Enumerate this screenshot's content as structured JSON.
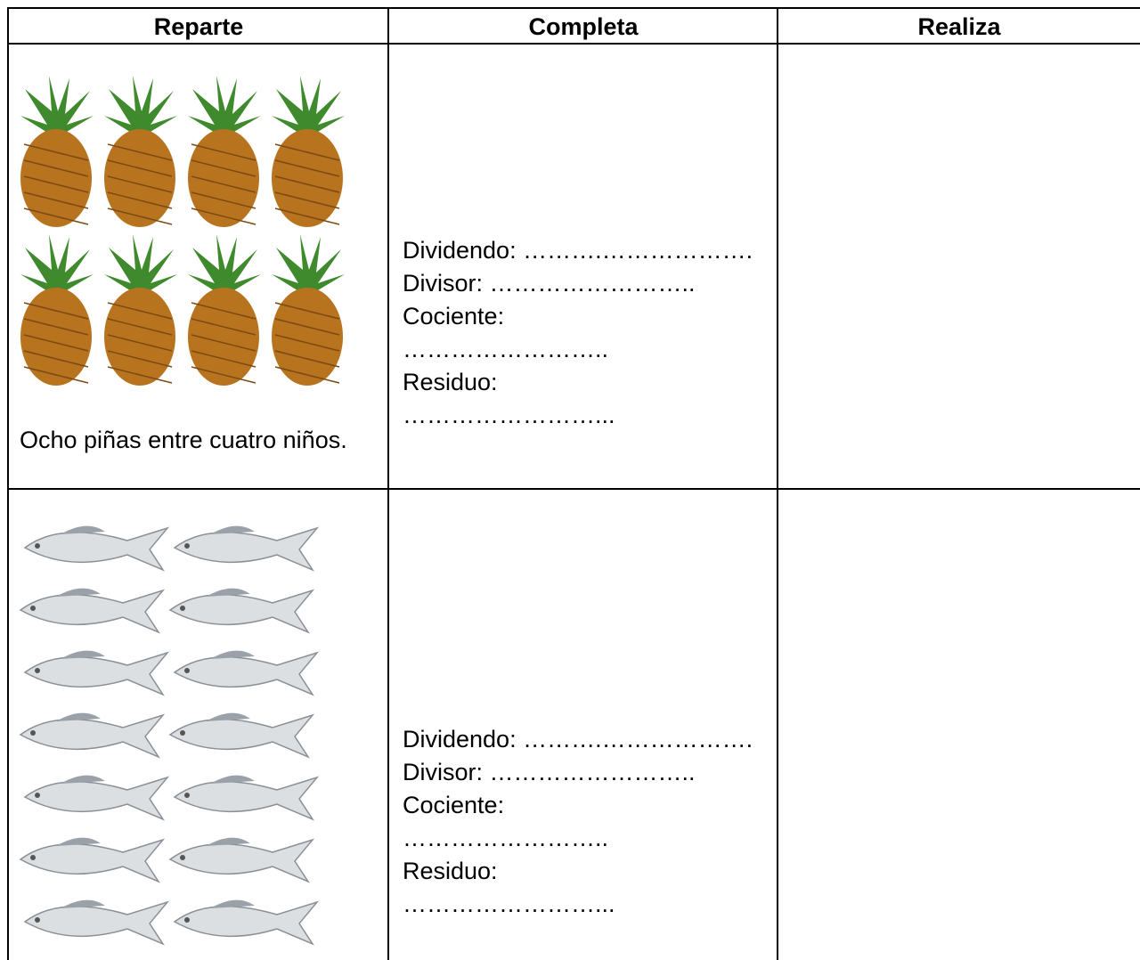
{
  "header": {
    "columns": [
      "Reparte",
      "Completa",
      "Realiza"
    ]
  },
  "rows": [
    {
      "caption": "Ocho piñas entre cuatro niños.",
      "completa": [
        "Dividendo: ……….……………….",
        "Divisor: ……………………..",
        "Cociente:",
        "……………………..",
        "Residuo:",
        "……………………..."
      ]
    },
    {
      "completa": [
        "Dividendo: ……….……………….",
        "Divisor: ……………………..",
        "Cociente:",
        "……………………..",
        "Residuo:",
        "……………………..."
      ]
    }
  ]
}
